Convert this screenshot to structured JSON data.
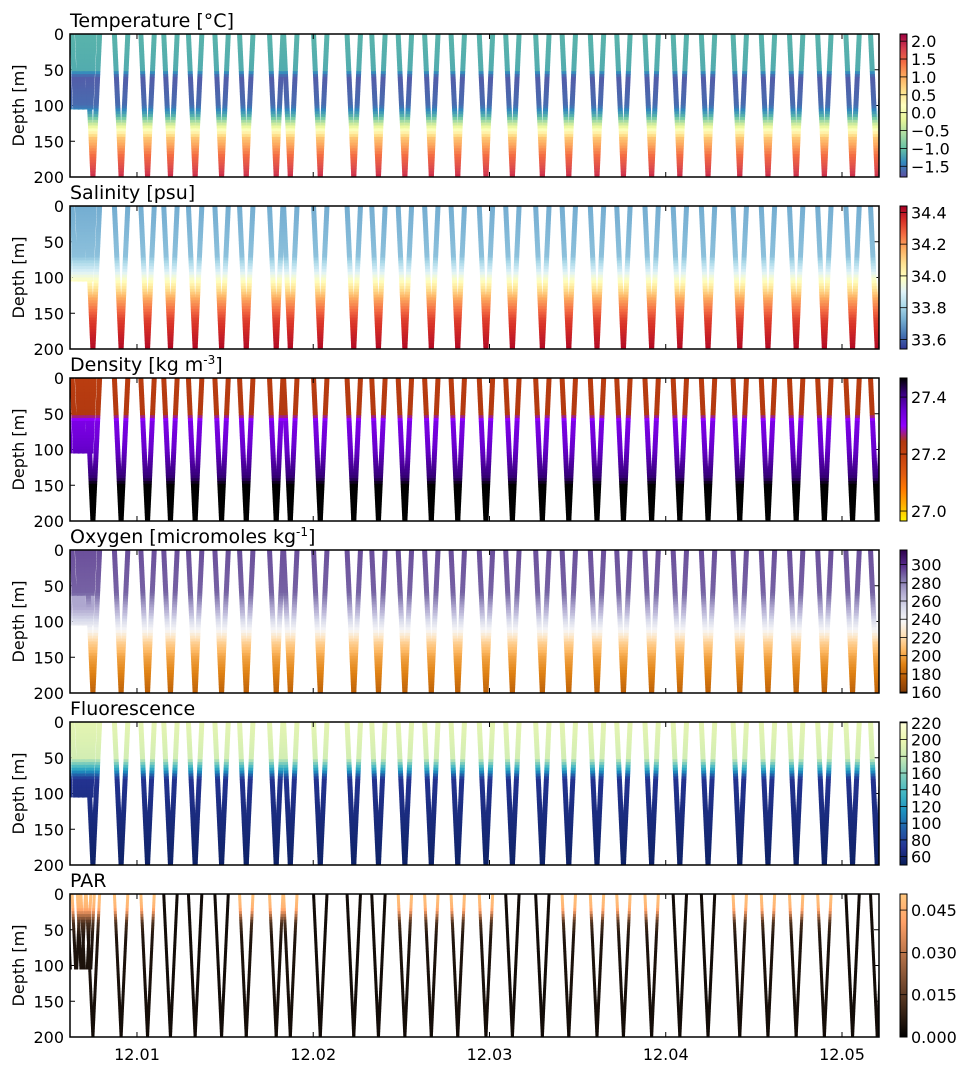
{
  "chart_data": [
    {
      "type": "heatmap",
      "title": "Temperature [$^\\circ$C]",
      "display_title": "Temperature [°C]",
      "ylabel": "Depth [m]",
      "ylim": [
        200,
        0
      ],
      "yticks": [
        "0",
        "50",
        "100",
        "150",
        "200"
      ],
      "clim": [
        -1.8,
        2.2
      ],
      "cbar_ticks": [
        "2.0",
        "1.5",
        "1.0",
        "0.5",
        "0.0",
        "−0.5",
        "−1.0",
        "−1.5"
      ],
      "cbar_values": [
        2.0,
        1.5,
        1.0,
        0.5,
        0.0,
        -0.5,
        -1.0,
        -1.5
      ],
      "colormap": [
        "#5e4fa2",
        "#3288bd",
        "#66c2a5",
        "#abdda4",
        "#e6f598",
        "#ffffbf",
        "#fee08b",
        "#fdae61",
        "#f46d43",
        "#d53e4f",
        "#9e0142"
      ],
      "profile": [
        [
          0,
          -1.1
        ],
        [
          50,
          -1.15
        ],
        [
          60,
          -1.7
        ],
        [
          100,
          -1.6
        ],
        [
          115,
          -1.1
        ],
        [
          130,
          -0.1
        ],
        [
          145,
          0.8
        ],
        [
          170,
          1.4
        ],
        [
          200,
          1.9
        ]
      ]
    },
    {
      "type": "heatmap",
      "title": "Salinity [psu]",
      "display_title": "Salinity [psu]",
      "ylabel": "Depth [m]",
      "ylim": [
        200,
        0
      ],
      "yticks": [
        "0",
        "50",
        "100",
        "150",
        "200"
      ],
      "clim": [
        33.54,
        34.44
      ],
      "cbar_ticks": [
        "34.4",
        "34.2",
        "34.0",
        "33.8",
        "33.6"
      ],
      "cbar_values": [
        34.4,
        34.2,
        34.0,
        33.8,
        33.6
      ],
      "colormap": [
        "#313695",
        "#4575b4",
        "#74add1",
        "#abd9e9",
        "#e0f3f8",
        "#ffffbf",
        "#fee090",
        "#fdae61",
        "#f46d43",
        "#d73027",
        "#a50026"
      ],
      "profile": [
        [
          0,
          33.72
        ],
        [
          70,
          33.76
        ],
        [
          90,
          33.88
        ],
        [
          110,
          34.03
        ],
        [
          130,
          34.18
        ],
        [
          160,
          34.33
        ],
        [
          200,
          34.42
        ]
      ]
    },
    {
      "type": "heatmap",
      "title": "Density [kg m-3]",
      "display_title": "Density [kg m",
      "title_sup": "-3",
      "title_end": "]",
      "ylabel": "Depth [m]",
      "ylim": [
        200,
        0
      ],
      "yticks": [
        "0",
        "50",
        "100",
        "150",
        "200"
      ],
      "clim": [
        26.965,
        27.467
      ],
      "cbar_ticks": [
        "27.4",
        "27.2",
        "27.0"
      ],
      "cbar_values": [
        27.4,
        27.2,
        27.0
      ],
      "colormap": [
        "#fff200",
        "#ffb000",
        "#ff7a00",
        "#e05a10",
        "#c84410",
        "#b03810",
        "#9000ff",
        "#6a00d0",
        "#3a0080",
        "#000000"
      ],
      "profile": [
        [
          0,
          27.22
        ],
        [
          50,
          27.24
        ],
        [
          62,
          27.33
        ],
        [
          100,
          27.36
        ],
        [
          140,
          27.42
        ],
        [
          155,
          27.5
        ],
        [
          200,
          27.55
        ]
      ]
    },
    {
      "type": "heatmap",
      "title": "Oxygen [micromoles kg-1]",
      "display_title": "Oxygen [micromoles kg",
      "title_sup": "-1",
      "title_end": "]",
      "ylabel": "Depth [m]",
      "ylim": [
        200,
        0
      ],
      "yticks": [
        "0",
        "50",
        "100",
        "150",
        "200"
      ],
      "clim": [
        159,
        316
      ],
      "cbar_ticks": [
        "300",
        "280",
        "260",
        "240",
        "220",
        "200",
        "180",
        "160"
      ],
      "cbar_values": [
        300,
        280,
        260,
        240,
        220,
        200,
        180,
        160
      ],
      "colormap": [
        "#7f3b08",
        "#b35806",
        "#e08214",
        "#fdb863",
        "#fee0b6",
        "#f7f7f7",
        "#d8daeb",
        "#b2abd2",
        "#8073ac",
        "#542788",
        "#2d004b"
      ],
      "profile": [
        [
          0,
          292
        ],
        [
          60,
          288
        ],
        [
          90,
          262
        ],
        [
          110,
          240
        ],
        [
          130,
          215
        ],
        [
          150,
          200
        ],
        [
          200,
          178
        ]
      ]
    },
    {
      "type": "heatmap",
      "title": "Fluorescence",
      "display_title": "Fluorescence",
      "ylabel": "Depth [m]",
      "ylim": [
        200,
        0
      ],
      "yticks": [
        "0",
        "50",
        "100",
        "150",
        "200"
      ],
      "clim": [
        50,
        221
      ],
      "cbar_ticks": [
        "220",
        "200",
        "180",
        "160",
        "140",
        "120",
        "100",
        "80",
        "60"
      ],
      "cbar_values": [
        220,
        200,
        180,
        160,
        140,
        120,
        100,
        80,
        60
      ],
      "colormap": [
        "#081d58",
        "#253494",
        "#225ea8",
        "#1d91c0",
        "#41b6c4",
        "#7fcdbb",
        "#c7e9b4",
        "#edf8b1",
        "#ffffd9"
      ],
      "profile": [
        [
          0,
          195
        ],
        [
          50,
          185
        ],
        [
          65,
          130
        ],
        [
          80,
          70
        ],
        [
          200,
          55
        ]
      ]
    },
    {
      "type": "heatmap",
      "title": "PAR",
      "display_title": "PAR",
      "ylabel": "Depth [m]",
      "ylim": [
        200,
        0
      ],
      "yticks": [
        "0",
        "50",
        "100",
        "150",
        "200"
      ],
      "clim": [
        0,
        0.0507
      ],
      "cbar_ticks": [
        "0.045",
        "0.030",
        "0.015",
        "0.000"
      ],
      "cbar_values": [
        0.045,
        0.03,
        0.015,
        0.0
      ],
      "colormap": [
        "#000000",
        "#3f2819",
        "#7f5033",
        "#bf784c",
        "#ffa066",
        "#ffc77f"
      ],
      "profile": [
        [
          0,
          0.05
        ],
        [
          20,
          0.045
        ],
        [
          40,
          0.012
        ],
        [
          60,
          0.005
        ],
        [
          200,
          0.003
        ]
      ],
      "night_profiles": [
        3,
        4,
        5,
        9,
        10,
        11,
        16,
        17,
        22,
        23,
        28,
        29
      ]
    }
  ],
  "x": {
    "xlim": [
      12.0062,
      12.0521
    ],
    "xticks": [
      12.01,
      12.02,
      12.03,
      12.04,
      12.05
    ],
    "xtick_labels": [
      "12.01",
      "12.02",
      "12.03",
      "12.04",
      "12.05"
    ],
    "profile_times": [
      12.0075,
      12.0091,
      12.0106,
      12.0119,
      12.0133,
      12.0148,
      12.0162,
      12.0179,
      12.0187,
      12.0204,
      12.0223,
      12.0237,
      12.0252,
      12.0267,
      12.0282,
      12.0298,
      12.0313,
      12.033,
      12.0345,
      12.0361,
      12.0376,
      12.0392,
      12.0408,
      12.0424,
      12.0442,
      12.0458,
      12.0474,
      12.049,
      12.0506,
      12.052
    ],
    "shallow_profile_times": [
      12.0064,
      12.0067,
      12.007,
      12.0072
    ],
    "shallow_max_depth": 105
  }
}
